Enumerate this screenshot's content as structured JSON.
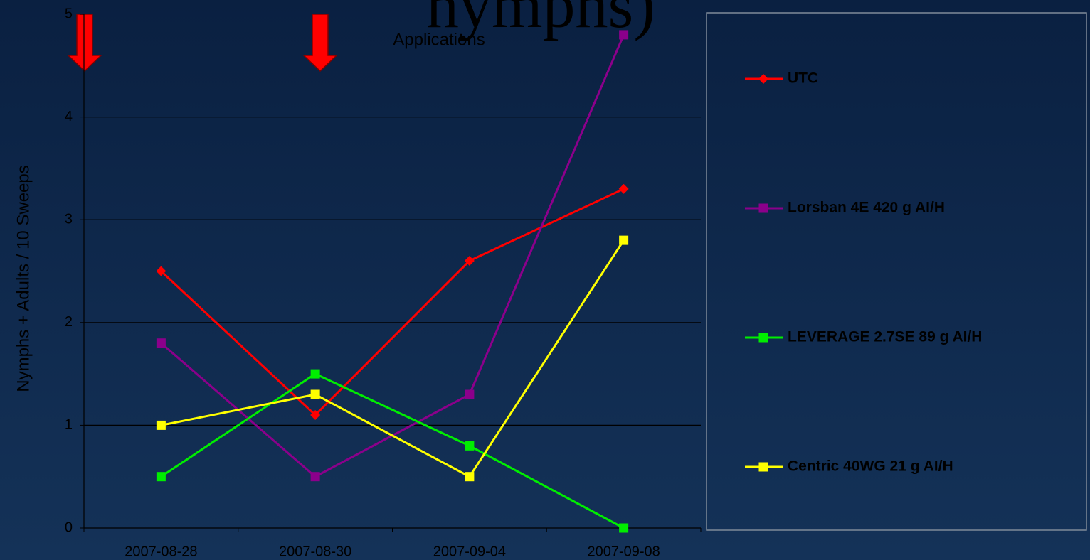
{
  "chart_data": {
    "type": "line",
    "title": "nymphs)",
    "annotation": "Applications",
    "y_label": "Nymphs + Adults / 10 Sweeps",
    "categories": [
      "2007-08-28",
      "2007-08-30",
      "2007-09-04",
      "2007-09-08"
    ],
    "series": [
      {
        "name": "UTC",
        "color": "#ff0000",
        "marker": "diamond",
        "values": [
          2.5,
          1.1,
          2.6,
          3.3
        ]
      },
      {
        "name": "Lorsban 4E 420 g AI/H",
        "color": "#8b008b",
        "marker": "square",
        "values": [
          1.8,
          0.5,
          1.3,
          4.8
        ]
      },
      {
        "name": "LEVERAGE 2.7SE 89 g AI/H",
        "color": "#00ee00",
        "marker": "square",
        "values": [
          0.5,
          1.5,
          0.8,
          0
        ]
      },
      {
        "name": "Centric 40WG 21 g AI/H",
        "color": "#ffff00",
        "marker": "square",
        "values": [
          1.0,
          1.3,
          0.5,
          2.8
        ]
      }
    ],
    "ylim": [
      0,
      5
    ],
    "yticks": [
      0,
      1,
      2,
      3,
      4,
      5
    ],
    "grid": true,
    "legend": "right"
  }
}
